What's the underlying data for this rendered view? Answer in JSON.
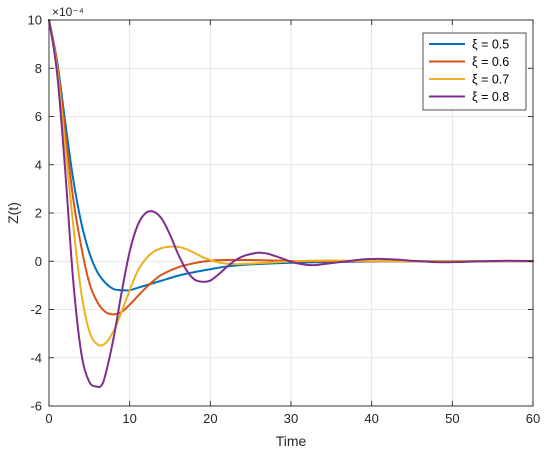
{
  "chart_data": {
    "type": "line",
    "title": "",
    "xlabel": "Time",
    "ylabel": "Z(t)",
    "y_exponent_label": "×10⁻⁴",
    "xlim": [
      0,
      60
    ],
    "ylim": [
      -6,
      10
    ],
    "xticks": [
      0,
      10,
      20,
      30,
      40,
      50,
      60
    ],
    "yticks": [
      -6,
      -4,
      -2,
      0,
      2,
      4,
      6,
      8,
      10
    ],
    "grid": true,
    "legend_position": "top-right",
    "series": [
      {
        "name": "ξ = 0.5",
        "color": "#0072BD",
        "x": [
          0,
          1,
          2,
          3,
          4,
          5,
          6,
          7,
          8,
          9,
          10,
          11,
          12,
          14,
          16,
          18,
          20,
          22,
          25,
          30,
          35,
          40,
          45,
          50,
          55,
          60
        ],
        "y": [
          10,
          8.3,
          5.8,
          3.4,
          1.6,
          0.35,
          -0.45,
          -0.9,
          -1.15,
          -1.2,
          -1.2,
          -1.1,
          -1.0,
          -0.8,
          -0.6,
          -0.45,
          -0.33,
          -0.22,
          -0.13,
          -0.06,
          -0.03,
          -0.01,
          0,
          0,
          0,
          0
        ]
      },
      {
        "name": "ξ = 0.6",
        "color": "#D95319",
        "x": [
          0,
          1,
          2,
          3,
          4,
          5,
          6,
          7,
          8,
          9,
          10,
          11,
          12,
          13,
          14,
          16,
          18,
          20,
          22,
          25,
          28,
          30,
          35,
          40,
          45,
          50,
          55,
          60
        ],
        "y": [
          10,
          8.2,
          5.4,
          2.6,
          0.6,
          -0.9,
          -1.7,
          -2.1,
          -2.2,
          -2.1,
          -1.8,
          -1.45,
          -1.1,
          -0.8,
          -0.55,
          -0.25,
          -0.08,
          0.02,
          0.05,
          0.05,
          0.03,
          0.01,
          0,
          0,
          0,
          0,
          0,
          0
        ]
      },
      {
        "name": "ξ = 0.7",
        "color": "#EDB120",
        "x": [
          0,
          1,
          2,
          3,
          4,
          5,
          6,
          7,
          8,
          9,
          10,
          11,
          12,
          13,
          14,
          15,
          16,
          17,
          18,
          19,
          20,
          21,
          22,
          23,
          24,
          26,
          28,
          30,
          32,
          35,
          40,
          45,
          50,
          55,
          60
        ],
        "y": [
          10,
          8.0,
          4.8,
          1.5,
          -1.3,
          -2.9,
          -3.45,
          -3.4,
          -2.9,
          -2.1,
          -1.2,
          -0.4,
          0.1,
          0.4,
          0.55,
          0.6,
          0.6,
          0.5,
          0.35,
          0.18,
          0.05,
          -0.05,
          -0.1,
          -0.12,
          -0.11,
          -0.08,
          -0.04,
          -0.01,
          0.02,
          0.03,
          0.01,
          0,
          0,
          0,
          0
        ]
      },
      {
        "name": "ξ = 0.8",
        "color": "#7E2F8E",
        "x": [
          0,
          1,
          2,
          3,
          4,
          5,
          6,
          6.5,
          7,
          8,
          9,
          10,
          11,
          12,
          13,
          14,
          15,
          16,
          17,
          18,
          19,
          20,
          21,
          22,
          23,
          24,
          25,
          26,
          27,
          28,
          29,
          30,
          31,
          32,
          33,
          34,
          35,
          37,
          39,
          41,
          43,
          45,
          47,
          49,
          51,
          53,
          55,
          57,
          60
        ],
        "y": [
          10,
          7.8,
          3.8,
          -0.8,
          -3.8,
          -5.0,
          -5.2,
          -5.15,
          -4.7,
          -3.2,
          -1.3,
          0.4,
          1.5,
          2.0,
          2.05,
          1.75,
          1.1,
          0.3,
          -0.35,
          -0.75,
          -0.85,
          -0.8,
          -0.55,
          -0.25,
          0.02,
          0.2,
          0.3,
          0.35,
          0.32,
          0.22,
          0.1,
          -0.02,
          -0.1,
          -0.15,
          -0.16,
          -0.12,
          -0.08,
          0.0,
          0.08,
          0.1,
          0.07,
          0.02,
          -0.02,
          -0.04,
          -0.03,
          -0.01,
          0.01,
          0.02,
          0.01
        ]
      }
    ]
  }
}
